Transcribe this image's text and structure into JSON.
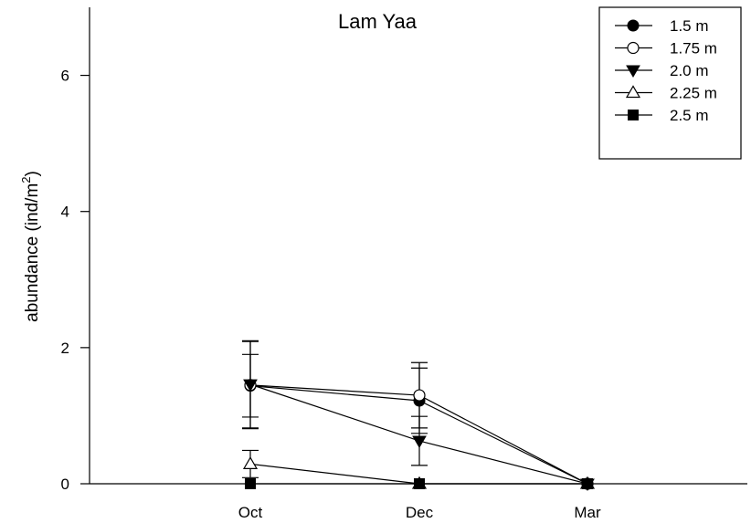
{
  "chart_data": {
    "type": "line",
    "title": "Lam Yaa",
    "ylabel": "abundance (ind/m",
    "ylabel_superscript": "2",
    "ylabel_suffix": ")",
    "xlabel": "",
    "categories": [
      "Oct",
      "Dec",
      "Mar"
    ],
    "ylim": [
      0,
      7
    ],
    "yticks": [
      0,
      2,
      4,
      6
    ],
    "grid": false,
    "legend_position": "top-right",
    "series": [
      {
        "name": "1.5 m",
        "marker": "filled-circle",
        "values": [
          1.44,
          1.22,
          0
        ],
        "errors": [
          0.46,
          0.48,
          0
        ]
      },
      {
        "name": "1.75 m",
        "marker": "open-circle",
        "values": [
          1.45,
          1.3,
          0
        ],
        "errors": [
          0.64,
          0.48,
          0
        ]
      },
      {
        "name": "2.0 m",
        "marker": "filled-triangle-down",
        "values": [
          1.46,
          0.63,
          0
        ],
        "errors": [
          0.64,
          0.36,
          0
        ]
      },
      {
        "name": "2.25 m",
        "marker": "open-triangle-up",
        "values": [
          0.29,
          0,
          0
        ],
        "errors": [
          0.2,
          0,
          0
        ]
      },
      {
        "name": "2.5 m",
        "marker": "filled-square",
        "values": [
          0,
          0,
          0
        ],
        "errors": [
          0,
          0,
          0
        ]
      }
    ]
  }
}
